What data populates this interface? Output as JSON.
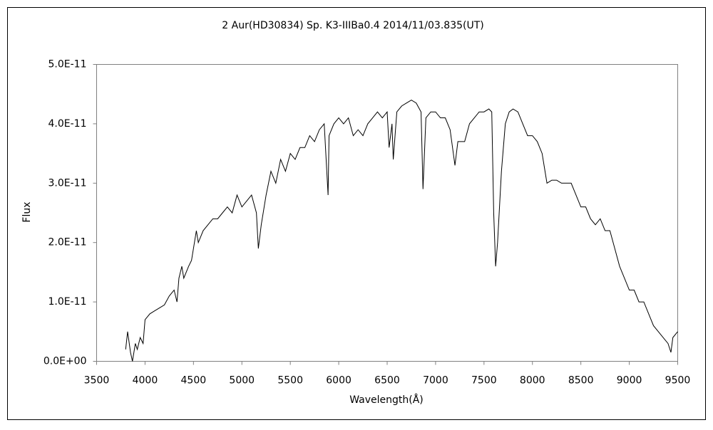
{
  "chart_data": {
    "type": "line",
    "title": "2 Aur(HD30834)   Sp. K3-IIIBa0.4   2014/11/03.835(UT)",
    "x_label": "Wavelength(Å)",
    "y_label": "Flux",
    "x": [
      3800,
      3820,
      3850,
      3870,
      3900,
      3920,
      3950,
      3980,
      4000,
      4050,
      4100,
      4150,
      4200,
      4250,
      4300,
      4330,
      4350,
      4380,
      4400,
      4450,
      4480,
      4500,
      4530,
      4550,
      4600,
      4650,
      4700,
      4750,
      4800,
      4850,
      4900,
      4950,
      5000,
      5050,
      5100,
      5150,
      5170,
      5200,
      5250,
      5300,
      5350,
      5400,
      5450,
      5500,
      5550,
      5600,
      5650,
      5700,
      5750,
      5800,
      5850,
      5890,
      5900,
      5950,
      6000,
      6050,
      6100,
      6150,
      6200,
      6250,
      6300,
      6350,
      6400,
      6450,
      6500,
      6520,
      6550,
      6563,
      6600,
      6650,
      6700,
      6750,
      6800,
      6850,
      6870,
      6900,
      6950,
      7000,
      7050,
      7100,
      7150,
      7200,
      7230,
      7300,
      7350,
      7400,
      7450,
      7500,
      7550,
      7580,
      7600,
      7620,
      7640,
      7680,
      7720,
      7760,
      7800,
      7850,
      7900,
      7950,
      8000,
      8050,
      8100,
      8130,
      8150,
      8200,
      8250,
      8300,
      8350,
      8400,
      8450,
      8500,
      8550,
      8600,
      8650,
      8700,
      8750,
      8800,
      8850,
      8900,
      8950,
      9000,
      9050,
      9100,
      9150,
      9200,
      9250,
      9300,
      9350,
      9400,
      9430,
      9450,
      9500
    ],
    "series": [
      {
        "name": "Flux",
        "color": "#000000",
        "values": [
          2e-12,
          5e-12,
          1.5e-12,
          0,
          3e-12,
          2e-12,
          4e-12,
          3e-12,
          7e-12,
          8e-12,
          8.5e-12,
          9e-12,
          9.5e-12,
          1.1e-11,
          1.2e-11,
          1e-11,
          1.4e-11,
          1.6e-11,
          1.4e-11,
          1.6e-11,
          1.7e-11,
          1.9e-11,
          2.2e-11,
          2e-11,
          2.2e-11,
          2.3e-11,
          2.4e-11,
          2.4e-11,
          2.5e-11,
          2.6e-11,
          2.5e-11,
          2.8e-11,
          2.6e-11,
          2.7e-11,
          2.8e-11,
          2.5e-11,
          1.9e-11,
          2.3e-11,
          2.8e-11,
          3.2e-11,
          3e-11,
          3.4e-11,
          3.2e-11,
          3.5e-11,
          3.4e-11,
          3.6e-11,
          3.6e-11,
          3.8e-11,
          3.7e-11,
          3.9e-11,
          4e-11,
          2.8e-11,
          3.8e-11,
          4e-11,
          4.1e-11,
          4e-11,
          4.1e-11,
          3.8e-11,
          3.9e-11,
          3.8e-11,
          4e-11,
          4.1e-11,
          4.2e-11,
          4.1e-11,
          4.2e-11,
          3.6e-11,
          4e-11,
          3.4e-11,
          4.2e-11,
          4.3e-11,
          4.35e-11,
          4.4e-11,
          4.35e-11,
          4.2e-11,
          2.9e-11,
          4.1e-11,
          4.2e-11,
          4.2e-11,
          4.1e-11,
          4.1e-11,
          3.9e-11,
          3.3e-11,
          3.7e-11,
          3.7e-11,
          4e-11,
          4.1e-11,
          4.2e-11,
          4.2e-11,
          4.25e-11,
          4.2e-11,
          2.5e-11,
          1.6e-11,
          2e-11,
          3.2e-11,
          4e-11,
          4.2e-11,
          4.25e-11,
          4.2e-11,
          4e-11,
          3.8e-11,
          3.8e-11,
          3.7e-11,
          3.5e-11,
          3.2e-11,
          3e-11,
          3.05e-11,
          3.05e-11,
          3e-11,
          3e-11,
          3e-11,
          2.8e-11,
          2.6e-11,
          2.6e-11,
          2.4e-11,
          2.3e-11,
          2.4e-11,
          2.2e-11,
          2.2e-11,
          1.9e-11,
          1.6e-11,
          1.4e-11,
          1.2e-11,
          1.2e-11,
          1e-11,
          1e-11,
          8e-12,
          6e-12,
          5e-12,
          4e-12,
          3e-12,
          1.5e-12,
          4e-12,
          5e-12
        ]
      }
    ],
    "xlim": [
      3500,
      9500
    ],
    "xticks": [
      3500,
      4000,
      4500,
      5000,
      5500,
      6000,
      6500,
      7000,
      7500,
      8000,
      8500,
      9000,
      9500
    ],
    "ylim": [
      0,
      5e-11
    ],
    "yticks": [
      {
        "value": 0,
        "label": "0.0E+00"
      },
      {
        "value": 1e-11,
        "label": "1.0E-11"
      },
      {
        "value": 2e-11,
        "label": "2.0E-11"
      },
      {
        "value": 3e-11,
        "label": "3.0E-11"
      },
      {
        "value": 4e-11,
        "label": "4.0E-11"
      },
      {
        "value": 5e-11,
        "label": "5.0E-11"
      }
    ],
    "grid": false
  }
}
